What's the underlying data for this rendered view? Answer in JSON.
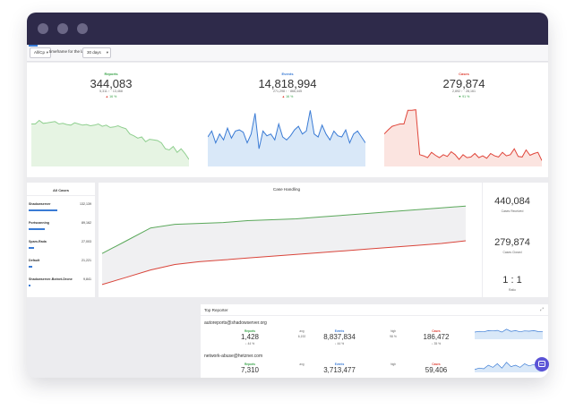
{
  "toolbar": {
    "source_select": "All/Cp",
    "timeframe_label": "timeframe for the last",
    "timeframe_select": "30 days"
  },
  "stats": [
    {
      "title": "Reports",
      "color": "#3aa34a",
      "value": "344,083",
      "sub_left": "5,311",
      "sub_right": "13,468",
      "delta": "16 %",
      "delta_dir": "up"
    },
    {
      "title": "Events",
      "color": "#3a7bd5",
      "value": "14,818,994",
      "sub_left": "271,298",
      "sub_right": "866,445",
      "delta": "16 %",
      "delta_dir": "up"
    },
    {
      "title": "Cases",
      "color": "#e0453a",
      "value": "279,874",
      "sub_left": "2,892",
      "sub_right": "28,161",
      "delta": "91 %",
      "delta_dir": "down"
    }
  ],
  "mini_charts": [
    {
      "series_color": "#8fcf8f",
      "fill": "#e6f4e3",
      "values": [
        0.72,
        0.72,
        0.78,
        0.73,
        0.74,
        0.75,
        0.76,
        0.72,
        0.73,
        0.71,
        0.7,
        0.74,
        0.72,
        0.7,
        0.71,
        0.69,
        0.7,
        0.72,
        0.68,
        0.7,
        0.66,
        0.67,
        0.69,
        0.66,
        0.64,
        0.55,
        0.52,
        0.48,
        0.5,
        0.42,
        0.46,
        0.45,
        0.44,
        0.4,
        0.3,
        0.28,
        0.34,
        0.24,
        0.3,
        0.22,
        0.12
      ]
    },
    {
      "series_color": "#3a7bd5",
      "fill": "#d9e8f8",
      "values": [
        0.5,
        0.6,
        0.4,
        0.55,
        0.45,
        0.65,
        0.48,
        0.6,
        0.62,
        0.58,
        0.4,
        0.55,
        0.9,
        0.3,
        0.6,
        0.52,
        0.55,
        0.45,
        0.72,
        0.5,
        0.45,
        0.52,
        0.62,
        0.68,
        0.55,
        0.6,
        0.95,
        0.55,
        0.5,
        0.7,
        0.55,
        0.45,
        0.6,
        0.52,
        0.5,
        0.62,
        0.4,
        0.55,
        0.6,
        0.5,
        0.4
      ]
    },
    {
      "series_color": "#e0453a",
      "fill": "#fbe4e0",
      "values": [
        0.55,
        0.62,
        0.68,
        0.7,
        0.72,
        0.72,
        0.95,
        0.95,
        0.96,
        0.2,
        0.18,
        0.15,
        0.24,
        0.19,
        0.15,
        0.2,
        0.17,
        0.25,
        0.2,
        0.12,
        0.2,
        0.15,
        0.16,
        0.22,
        0.15,
        0.18,
        0.14,
        0.22,
        0.18,
        0.16,
        0.24,
        0.18,
        0.2,
        0.3,
        0.17,
        0.16,
        0.28,
        0.19,
        0.22,
        0.24,
        0.1
      ]
    }
  ],
  "all_cases": {
    "title": "All Cases",
    "rows": [
      {
        "label": "Shadowserver",
        "value": "132,139",
        "fraction": 0.45
      },
      {
        "label": "Portscanning",
        "value": "89,162",
        "fraction": 0.25
      },
      {
        "label": "Spam-Rada",
        "value": "27,003",
        "fraction": 0.08
      },
      {
        "label": "Default",
        "value": "21,221",
        "fraction": 0.06
      },
      {
        "label": "Shadowserver-Botnet-Drone",
        "value": "9,841",
        "fraction": 0.03
      }
    ]
  },
  "case_handling": {
    "title": "Case Handling",
    "received_values": [
      0.38,
      0.52,
      0.66,
      0.7,
      0.71,
      0.72,
      0.74,
      0.75,
      0.76,
      0.78,
      0.8,
      0.82,
      0.84,
      0.86,
      0.88,
      0.9
    ],
    "closed_values": [
      0.04,
      0.12,
      0.2,
      0.26,
      0.29,
      0.31,
      0.33,
      0.35,
      0.37,
      0.39,
      0.41,
      0.43,
      0.45,
      0.47,
      0.49,
      0.52
    ],
    "received_color": "#5aa85a",
    "closed_color": "#d9443a",
    "stats": [
      {
        "value": "440,084",
        "label": "Cases Received"
      },
      {
        "value": "279,874",
        "label": "Cases Closed"
      },
      {
        "value": "1 : 1",
        "label": "Ratio"
      }
    ]
  },
  "top_reporter": {
    "title": "Top Reporter",
    "rows": [
      {
        "email": "autoreports@shadowserver.org",
        "reports": "1,428",
        "reports_delta": "44 %",
        "avg": "6,192",
        "events": "8,837,834",
        "events_delta": "44 %",
        "ratio": "98 %",
        "cases": "186,472",
        "cases_delta": "35 %"
      },
      {
        "email": "network-abuse@hetzner.com",
        "reports": "7,310",
        "reports_delta": "",
        "avg": "",
        "events": "3,713,477",
        "events_delta": "",
        "ratio": "",
        "cases": "59,406",
        "cases_delta": ""
      }
    ],
    "labels": {
      "reports": "Reports",
      "avg": "avg",
      "events": "Events",
      "ratio": "high",
      "cases": "Cases"
    }
  }
}
